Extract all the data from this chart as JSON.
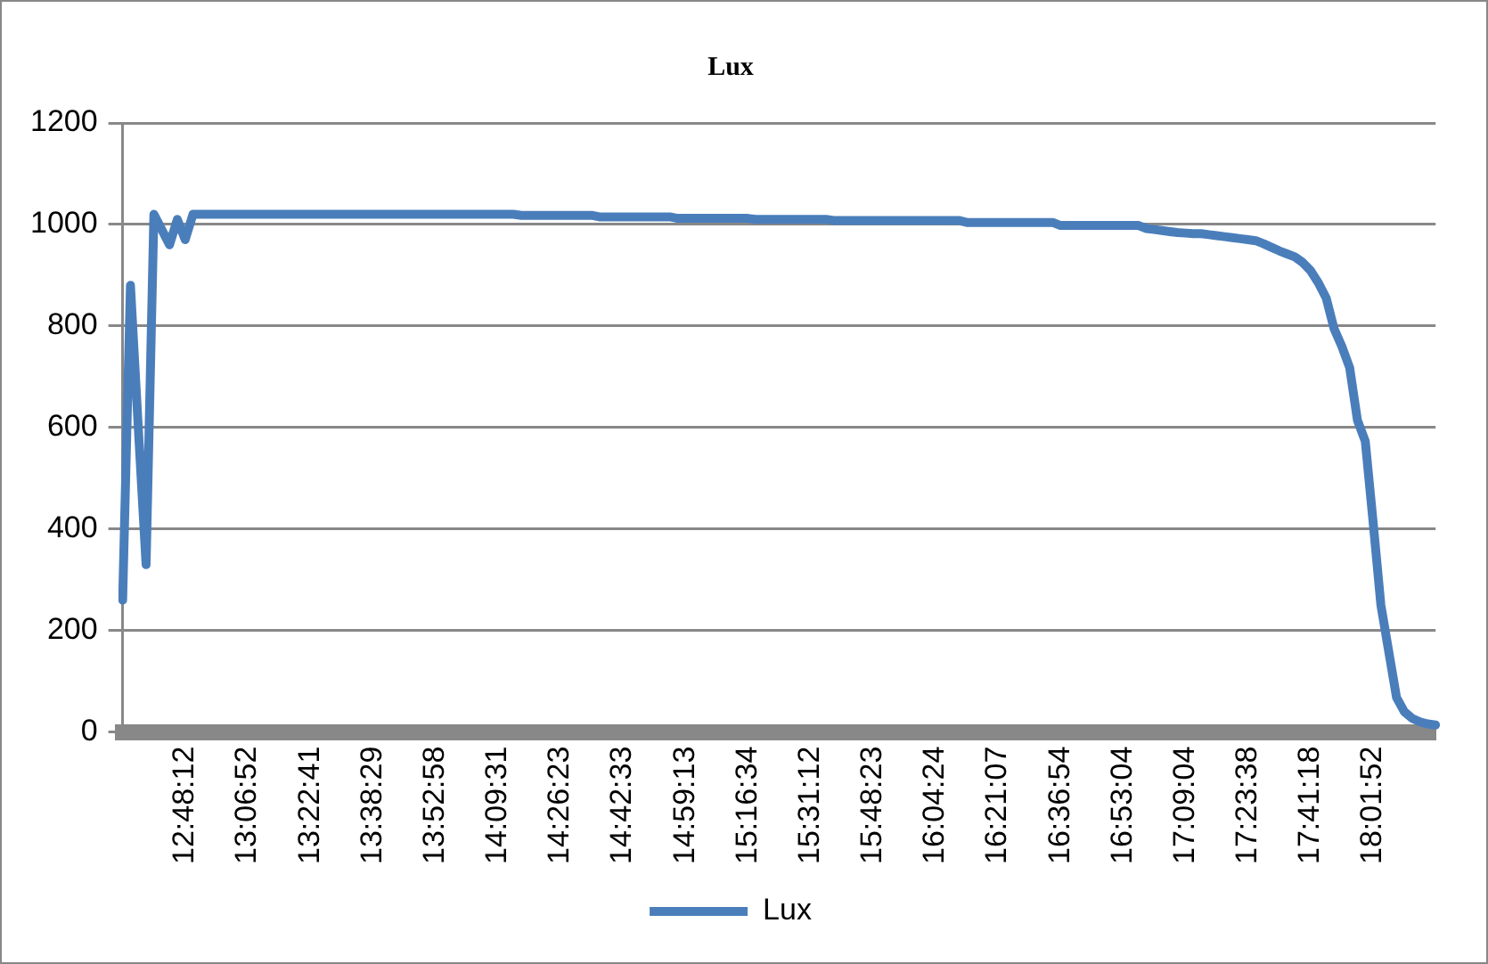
{
  "chart_data": {
    "type": "line",
    "title": "Lux",
    "categories": [
      null,
      null,
      null,
      null,
      null,
      null,
      null,
      null,
      "12:48:12",
      null,
      null,
      null,
      null,
      null,
      null,
      null,
      "13:06:52",
      null,
      null,
      null,
      null,
      null,
      null,
      null,
      "13:22:41",
      null,
      null,
      null,
      null,
      null,
      null,
      null,
      "13:38:29",
      null,
      null,
      null,
      null,
      null,
      null,
      null,
      "13:52:58",
      null,
      null,
      null,
      null,
      null,
      null,
      null,
      "14:09:31",
      null,
      null,
      null,
      null,
      null,
      null,
      null,
      "14:26:23",
      null,
      null,
      null,
      null,
      null,
      null,
      null,
      "14:42:33",
      null,
      null,
      null,
      null,
      null,
      null,
      null,
      "14:59:13",
      null,
      null,
      null,
      null,
      null,
      null,
      null,
      "15:16:34",
      null,
      null,
      null,
      null,
      null,
      null,
      null,
      "15:31:12",
      null,
      null,
      null,
      null,
      null,
      null,
      null,
      "15:48:23",
      null,
      null,
      null,
      null,
      null,
      null,
      null,
      "16:04:24",
      null,
      null,
      null,
      null,
      null,
      null,
      null,
      "16:21:07",
      null,
      null,
      null,
      null,
      null,
      null,
      null,
      "16:36:54",
      null,
      null,
      null,
      null,
      null,
      null,
      null,
      "16:53:04",
      null,
      null,
      null,
      null,
      null,
      null,
      null,
      "17:09:04",
      null,
      null,
      null,
      null,
      null,
      null,
      null,
      "17:23:38",
      null,
      null,
      null,
      null,
      null,
      null,
      null,
      "17:41:18",
      null,
      null,
      null,
      null,
      null,
      null,
      null,
      "18:01:52",
      null,
      null,
      null,
      null,
      null,
      null,
      null,
      null
    ],
    "series": [
      {
        "name": "Lux",
        "color": "#4a7ebb",
        "values": [
          260,
          880,
          600,
          330,
          1020,
          990,
          960,
          1010,
          970,
          1020,
          1020,
          1020,
          1020,
          1020,
          1020,
          1020,
          1020,
          1020,
          1020,
          1020,
          1020,
          1020,
          1020,
          1020,
          1020,
          1020,
          1020,
          1020,
          1020,
          1020,
          1020,
          1020,
          1020,
          1020,
          1020,
          1020,
          1020,
          1020,
          1020,
          1020,
          1020,
          1020,
          1020,
          1020,
          1020,
          1020,
          1020,
          1020,
          1020,
          1020,
          1020,
          1018,
          1018,
          1018,
          1018,
          1018,
          1018,
          1018,
          1018,
          1018,
          1018,
          1015,
          1015,
          1015,
          1015,
          1015,
          1015,
          1015,
          1015,
          1015,
          1015,
          1012,
          1012,
          1012,
          1012,
          1012,
          1012,
          1012,
          1012,
          1012,
          1012,
          1010,
          1010,
          1010,
          1010,
          1010,
          1010,
          1010,
          1010,
          1010,
          1010,
          1008,
          1008,
          1008,
          1008,
          1008,
          1008,
          1008,
          1008,
          1008,
          1008,
          1008,
          1008,
          1008,
          1008,
          1008,
          1008,
          1008,
          1004,
          1004,
          1004,
          1004,
          1004,
          1004,
          1004,
          1004,
          1004,
          1004,
          1004,
          1004,
          998,
          998,
          998,
          998,
          998,
          998,
          998,
          998,
          998,
          998,
          998,
          992,
          990,
          988,
          986,
          984,
          983,
          982,
          982,
          980,
          978,
          976,
          974,
          972,
          970,
          968,
          962,
          955,
          948,
          942,
          936,
          925,
          909,
          885,
          855,
          795,
          760,
          718,
          614,
          573,
          414,
          250,
          159,
          68,
          40,
          27,
          20,
          16,
          14
        ]
      }
    ],
    "ylim": [
      0,
      1200
    ],
    "yticks": [
      0,
      200,
      400,
      600,
      800,
      1000,
      1200
    ],
    "grid": "y",
    "legend": "bottom",
    "marker": "none",
    "line_style": "solid"
  }
}
